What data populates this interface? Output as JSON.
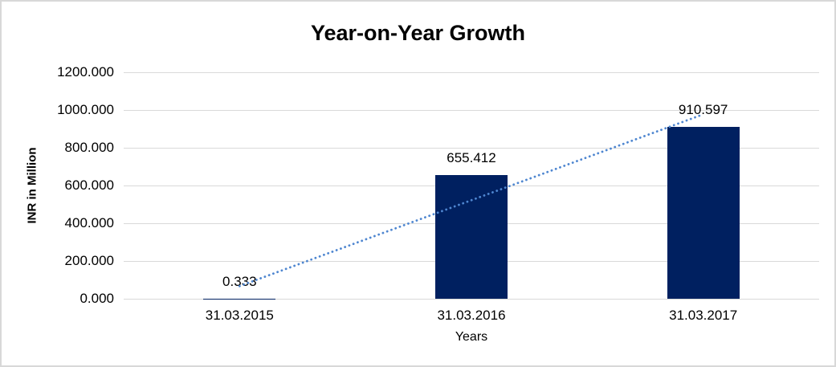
{
  "chart_data": {
    "type": "bar",
    "title": "Year-on-Year Growth",
    "categories": [
      "31.03.2015",
      "31.03.2016",
      "31.03.2017"
    ],
    "values": [
      0.333,
      655.412,
      910.597
    ],
    "data_labels": [
      "0.333",
      "655.412",
      "910.597"
    ],
    "xlabel": "Years",
    "ylabel": "INR in Million",
    "ylim": [
      0,
      1200
    ],
    "ytick_labels": [
      "1200.000",
      "1000.000",
      "800.000",
      "600.000",
      "400.000",
      "200.000",
      "0.000"
    ],
    "grid": true,
    "legend": "none",
    "bar_color": "#002060",
    "gridline_color": "#d9d9d9",
    "text_color": "#000000",
    "trendline": {
      "type": "linear",
      "style": "dotted",
      "color": "#4e86d0"
    }
  }
}
